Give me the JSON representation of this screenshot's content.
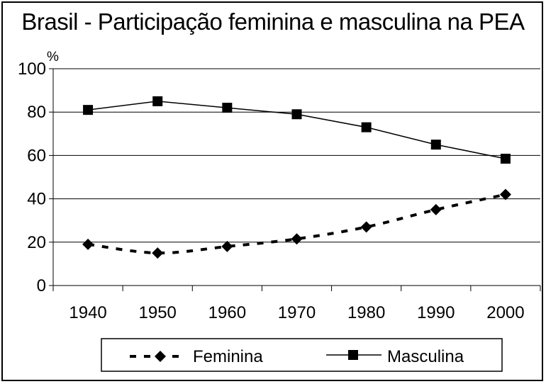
{
  "chart_data": {
    "type": "line",
    "title": "Brasil - Participação feminina e masculina na PEA",
    "ylabel": "%",
    "xlabel": "",
    "categories": [
      "1940",
      "1950",
      "1960",
      "1970",
      "1980",
      "1990",
      "2000"
    ],
    "ylim": [
      0,
      100
    ],
    "yticks": [
      0,
      20,
      40,
      60,
      80,
      100
    ],
    "grid": true,
    "legend": "bottom",
    "series": [
      {
        "name": "Feminina",
        "values": [
          19,
          15,
          18,
          21.5,
          27,
          35,
          42
        ],
        "style": "dashed",
        "marker": "diamond",
        "color": "#000000"
      },
      {
        "name": "Masculina",
        "values": [
          81,
          85,
          82,
          79,
          73,
          65,
          58.5
        ],
        "style": "solid",
        "marker": "square",
        "color": "#000000"
      }
    ]
  }
}
